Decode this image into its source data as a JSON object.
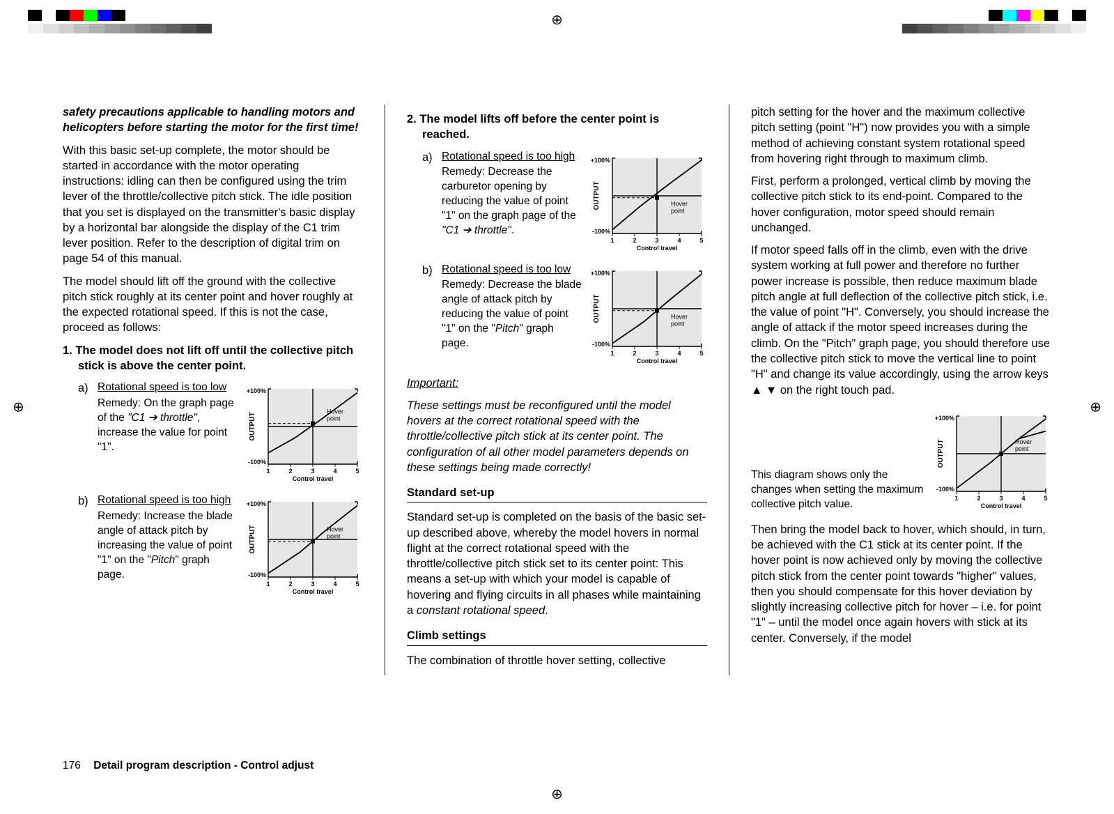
{
  "footer": {
    "page": "176",
    "title": "Detail program description - Control adjust"
  },
  "col1": {
    "warn": "safety precautions applicable to handling motors and helicopters before starting the motor for the first time!",
    "p1": "With this basic set-up complete, the motor should be started in accordance with the motor operating instructions: idling can then be configured using the trim lever of the throttle/collective pitch stick. The idle position that you set is displayed on the transmitter's basic display by a horizontal bar alongside the display of the C1 trim lever position. Refer to the description of digital trim on page 54 of this manual.",
    "p2": "The model should lift off the ground with the collective pitch stick roughly at its center point and hover roughly at the expected rotational speed. If this is not the case, proceed as follows:",
    "h1": "1.  The model does not lift off until the collective pitch stick is above the center point.",
    "a": {
      "letter": "a)",
      "title": "Rotational speed is too low",
      "remedy_pre": "Remedy: On the graph page of the ",
      "remedy_mid": "\"C1 ➔ throttle\"",
      "remedy_post": ", increase the value for point \"1\"."
    },
    "b": {
      "letter": "b)",
      "title": "Rotational speed is too high",
      "remedy_pre": "Remedy: Increase the blade angle of attack pitch by increasing the value of point \"1\" on the \"",
      "remedy_mid": "Pitch",
      "remedy_post": "\" graph page."
    }
  },
  "col2": {
    "h1": "2.  The model lifts off before the center point is reached.",
    "a": {
      "letter": "a)",
      "title": "Rotational speed is too high",
      "remedy_pre": "Remedy: Decrease the carburetor opening by reducing the value of point \"1\" on the graph page of the ",
      "remedy_mid": "\"C1 ➔ throttle\"",
      "remedy_post": "."
    },
    "b": {
      "letter": "b)",
      "title": "Rotational speed is too low",
      "remedy_pre": "Remedy: Decrease the blade angle of attack pitch by reducing the value of point \"1\" on the \"",
      "remedy_mid": "Pitch",
      "remedy_post": "\" graph page."
    },
    "imp_h": "Important:",
    "imp_p": "These settings must be reconfigured until the model hovers at the correct rotational speed with the throttle/collective pitch stick at its center point. The configuration of all other model parameters depends on these settings being made correctly!",
    "std_h": "Standard set-up",
    "std_p_pre": "Standard set-up is completed on the basis of the basic set-up described above, whereby the model hovers in normal flight at the correct rotational speed with the throttle/collective pitch stick set to its center point: This means a set-up with which your model is capable of hovering and flying circuits in all phases while maintaining a ",
    "std_p_mid": "constant rotational speed",
    "std_p_post": ".",
    "climb_h": "Climb settings",
    "climb_p": "The combination of throttle hover setting, collective"
  },
  "col3": {
    "p1": "pitch setting for the hover and the maximum collective pitch setting (point \"H\") now provides you with a simple method of achieving constant system rotational speed from hovering right through to maximum climb.",
    "p2": "First, perform a prolonged, vertical climb by moving the collective pitch stick to its end-point. Compared to the hover configuration, motor speed should remain unchanged.",
    "p3": "If motor speed falls off in the climb, even with the drive system working at full power and therefore no further power increase is possible, then reduce maximum blade pitch angle at full deflection of the collective pitch stick, i.e. the value of point \"H\". Conversely, you should increase the angle of attack if the motor speed increases during the climb. On the \"Pitch\" graph page, you should therefore use the collective pitch stick to move the vertical line to point \"H\" and change its value accordingly, using the arrow keys ▲ ▼ on the right touch pad.",
    "note": "This diagram shows only the changes when setting the maximum collective pitch value.",
    "p4": "Then bring the model back to hover, which should, in turn, be achieved with the C1 stick at its center point. If the hover point is now achieved only by moving the collective pitch stick from the center point towards \"higher\" values, then you should compensate for this hover deviation by slightly increasing collective pitch for hover – i.e. for point \"1\" – until the model once again hovers with stick at its center. Conversely, if the model"
  },
  "charts": {
    "ylabel": "OUTPUT",
    "xlabel": "Control travel",
    "ytop": "+100%",
    "ybot": "-100%",
    "xticks": [
      "1",
      "2",
      "3",
      "4",
      "5"
    ],
    "hover": "Hover point",
    "bg": "#e6e6e6",
    "c1a": {
      "curve": [
        [
          0,
          -70
        ],
        [
          30,
          -30
        ],
        [
          60,
          20
        ],
        [
          100,
          90
        ]
      ],
      "hover_x": 50,
      "hover_y": 8,
      "label_above": true
    },
    "c1b": {
      "curve": [
        [
          0,
          -90
        ],
        [
          35,
          -35
        ],
        [
          65,
          25
        ],
        [
          100,
          90
        ]
      ],
      "hover_x": 50,
      "hover_y": -5,
      "label_above": true
    },
    "c2a": {
      "curve": [
        [
          0,
          -90
        ],
        [
          30,
          -30
        ],
        [
          60,
          25
        ],
        [
          100,
          95
        ]
      ],
      "hover_x": 50,
      "hover_y": -5,
      "label_below": true
    },
    "c2b": {
      "curve": [
        [
          0,
          -92
        ],
        [
          35,
          -35
        ],
        [
          65,
          25
        ],
        [
          100,
          92
        ]
      ],
      "hover_x": 50,
      "hover_y": -5,
      "label_below": true
    },
    "c3": {
      "curve": [
        [
          0,
          -92
        ],
        [
          40,
          -20
        ],
        [
          70,
          40
        ],
        [
          100,
          60
        ]
      ],
      "alt_curve": [
        [
          70,
          40
        ],
        [
          100,
          92
        ]
      ],
      "hover_x": 50,
      "hover_y": 0,
      "label_above": true
    }
  },
  "regbar": {
    "colors_left": [
      "#000000",
      "#ffffff",
      "#000000",
      "#ff0000",
      "#00ff00",
      "#0000ff",
      "#000000"
    ],
    "colors_right": [
      "#000000",
      "#00ffff",
      "#ff00ff",
      "#ffff00",
      "#000000",
      "#ffffff",
      "#000000"
    ],
    "grays": [
      "#f0f0f0",
      "#e0e0e0",
      "#d0d0d0",
      "#c0c0c0",
      "#b0b0b0",
      "#a0a0a0",
      "#909090",
      "#808080",
      "#707070",
      "#606060",
      "#505050",
      "#404040"
    ]
  }
}
